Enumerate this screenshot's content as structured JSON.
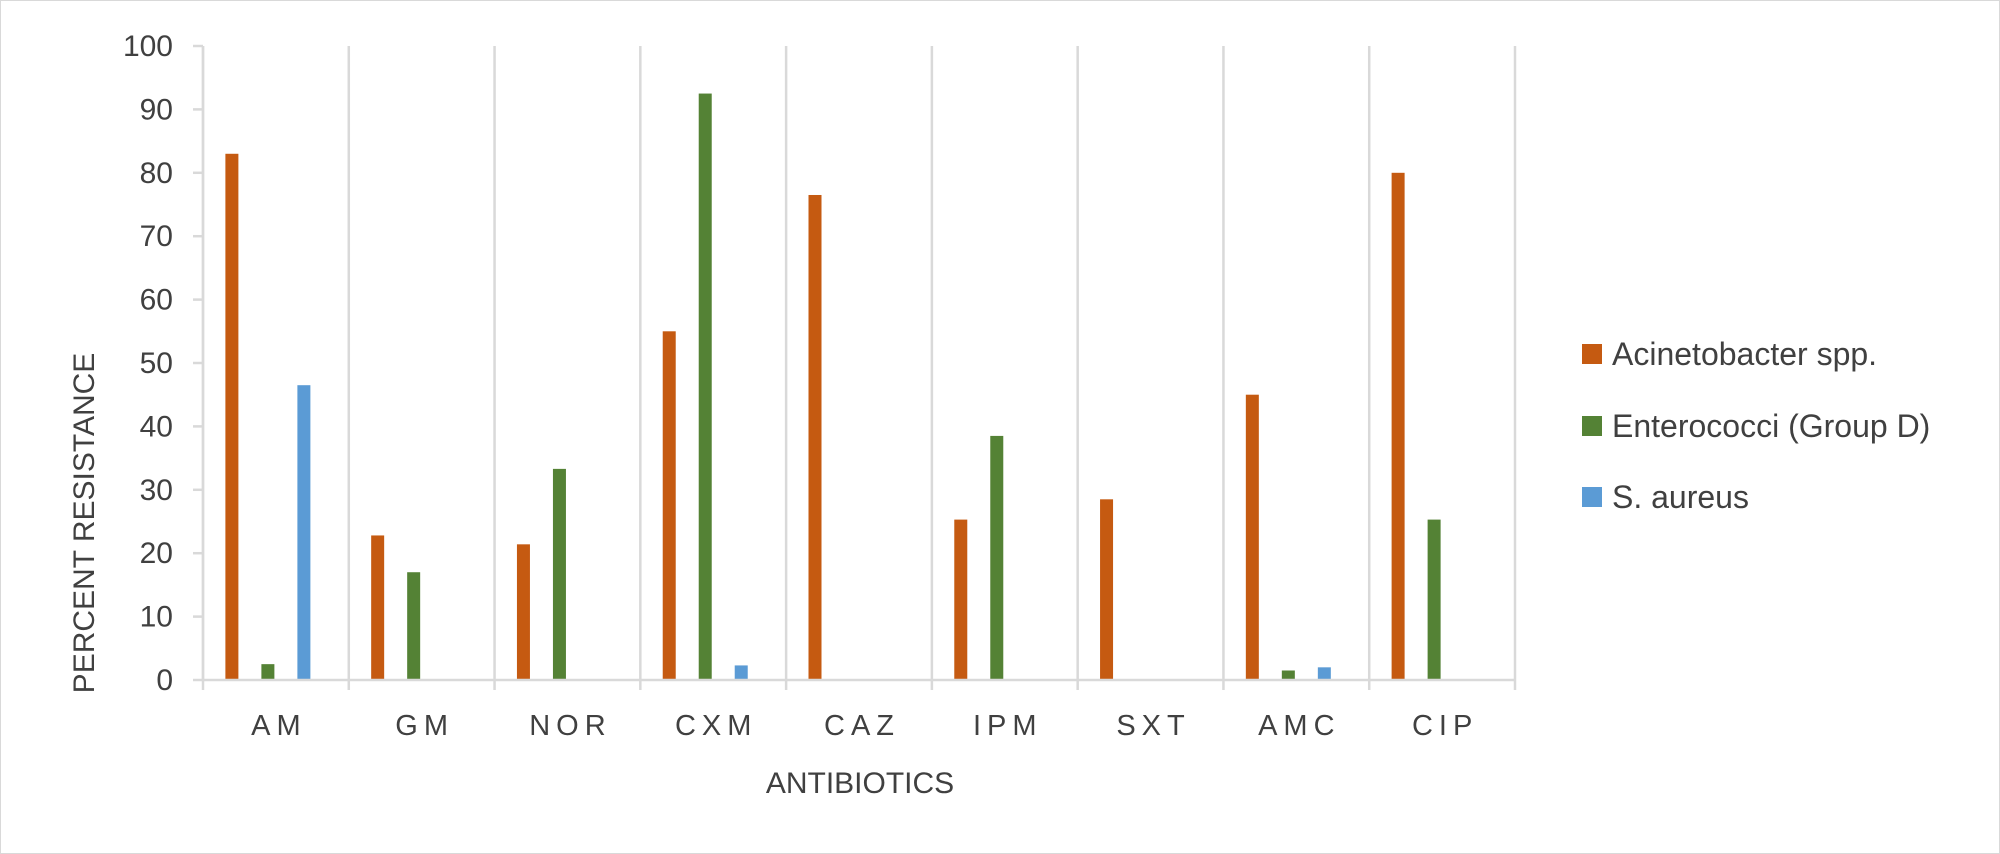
{
  "chart_data": {
    "type": "bar",
    "title": "",
    "xlabel": "ANTIBIOTICS",
    "ylabel": "PERCENT RESISTANCE",
    "ylim": [
      0,
      100
    ],
    "yticks": [
      "0",
      "10",
      "20",
      "30",
      "40",
      "50",
      "60",
      "70",
      "80",
      "90",
      "100"
    ],
    "grid": "vertical category separators",
    "legend_position": "right",
    "categories": [
      "AM",
      "GM",
      "NOR",
      "CXM",
      "CAZ",
      "IPM",
      "SXT",
      "AMC",
      "CIP"
    ],
    "series": [
      {
        "name": "Acinetobacter spp.",
        "color": "#c55a11",
        "values": [
          83,
          22.8,
          21.4,
          55,
          76.5,
          25.3,
          28.5,
          45,
          80
        ]
      },
      {
        "name": "Enterococci (Group D)",
        "color": "#548235",
        "values": [
          2.5,
          17,
          33.3,
          92.5,
          0,
          38.5,
          0,
          1.5,
          25.3
        ]
      },
      {
        "name": "S. aureus",
        "color": "#5b9bd5",
        "values": [
          46.5,
          0,
          0,
          2.3,
          0,
          0,
          0,
          2,
          0
        ]
      }
    ]
  }
}
